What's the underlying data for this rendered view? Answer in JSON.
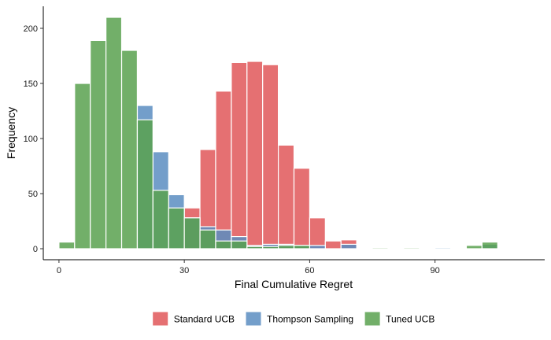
{
  "chart_data": {
    "type": "histogram",
    "xlabel": "Final Cumulative Regret",
    "ylabel": "Frequency",
    "xlim": [
      -3.75,
      116.25
    ],
    "ylim": [
      -10,
      220
    ],
    "bin_width": 3.75,
    "x_ticks": [
      0,
      30,
      60,
      90
    ],
    "y_ticks": [
      0,
      50,
      100,
      150,
      200
    ],
    "grid": false,
    "legend_position": "bottom",
    "series": [
      {
        "name": "Standard UCB",
        "color": "#E15759",
        "bins": [
          {
            "x": 30.0,
            "count": 37
          },
          {
            "x": 33.75,
            "count": 90
          },
          {
            "x": 37.5,
            "count": 143
          },
          {
            "x": 41.25,
            "count": 169
          },
          {
            "x": 45.0,
            "count": 170
          },
          {
            "x": 48.75,
            "count": 167
          },
          {
            "x": 52.5,
            "count": 94
          },
          {
            "x": 56.25,
            "count": 73
          },
          {
            "x": 60.0,
            "count": 28
          },
          {
            "x": 63.75,
            "count": 7
          },
          {
            "x": 67.5,
            "count": 8
          }
        ]
      },
      {
        "name": "Thompson Sampling",
        "color": "#5A8DC1",
        "bins": [
          {
            "x": 18.75,
            "count": 130
          },
          {
            "x": 22.5,
            "count": 88
          },
          {
            "x": 26.25,
            "count": 49
          },
          {
            "x": 30.0,
            "count": 28
          },
          {
            "x": 33.75,
            "count": 20
          },
          {
            "x": 37.5,
            "count": 17
          },
          {
            "x": 41.25,
            "count": 11
          },
          {
            "x": 45.0,
            "count": 3
          },
          {
            "x": 48.75,
            "count": 4
          },
          {
            "x": 52.5,
            "count": 4
          },
          {
            "x": 56.25,
            "count": 3
          },
          {
            "x": 60.0,
            "count": 3
          },
          {
            "x": 67.5,
            "count": 4
          },
          {
            "x": 90.0,
            "count": 1
          },
          {
            "x": 101.25,
            "count": 4
          }
        ]
      },
      {
        "name": "Tuned UCB",
        "color": "#59A14F",
        "bins": [
          {
            "x": 0.0,
            "count": 6
          },
          {
            "x": 3.75,
            "count": 150
          },
          {
            "x": 7.5,
            "count": 189
          },
          {
            "x": 11.25,
            "count": 210
          },
          {
            "x": 15.0,
            "count": 180
          },
          {
            "x": 18.75,
            "count": 117
          },
          {
            "x": 22.5,
            "count": 53
          },
          {
            "x": 26.25,
            "count": 37
          },
          {
            "x": 30.0,
            "count": 28
          },
          {
            "x": 33.75,
            "count": 17
          },
          {
            "x": 37.5,
            "count": 7
          },
          {
            "x": 41.25,
            "count": 7
          },
          {
            "x": 45.0,
            "count": 2
          },
          {
            "x": 48.75,
            "count": 2
          },
          {
            "x": 52.5,
            "count": 3
          },
          {
            "x": 56.25,
            "count": 3
          },
          {
            "x": 75.0,
            "count": 1
          },
          {
            "x": 82.5,
            "count": 1
          },
          {
            "x": 97.5,
            "count": 3
          },
          {
            "x": 101.25,
            "count": 6
          }
        ]
      }
    ]
  }
}
